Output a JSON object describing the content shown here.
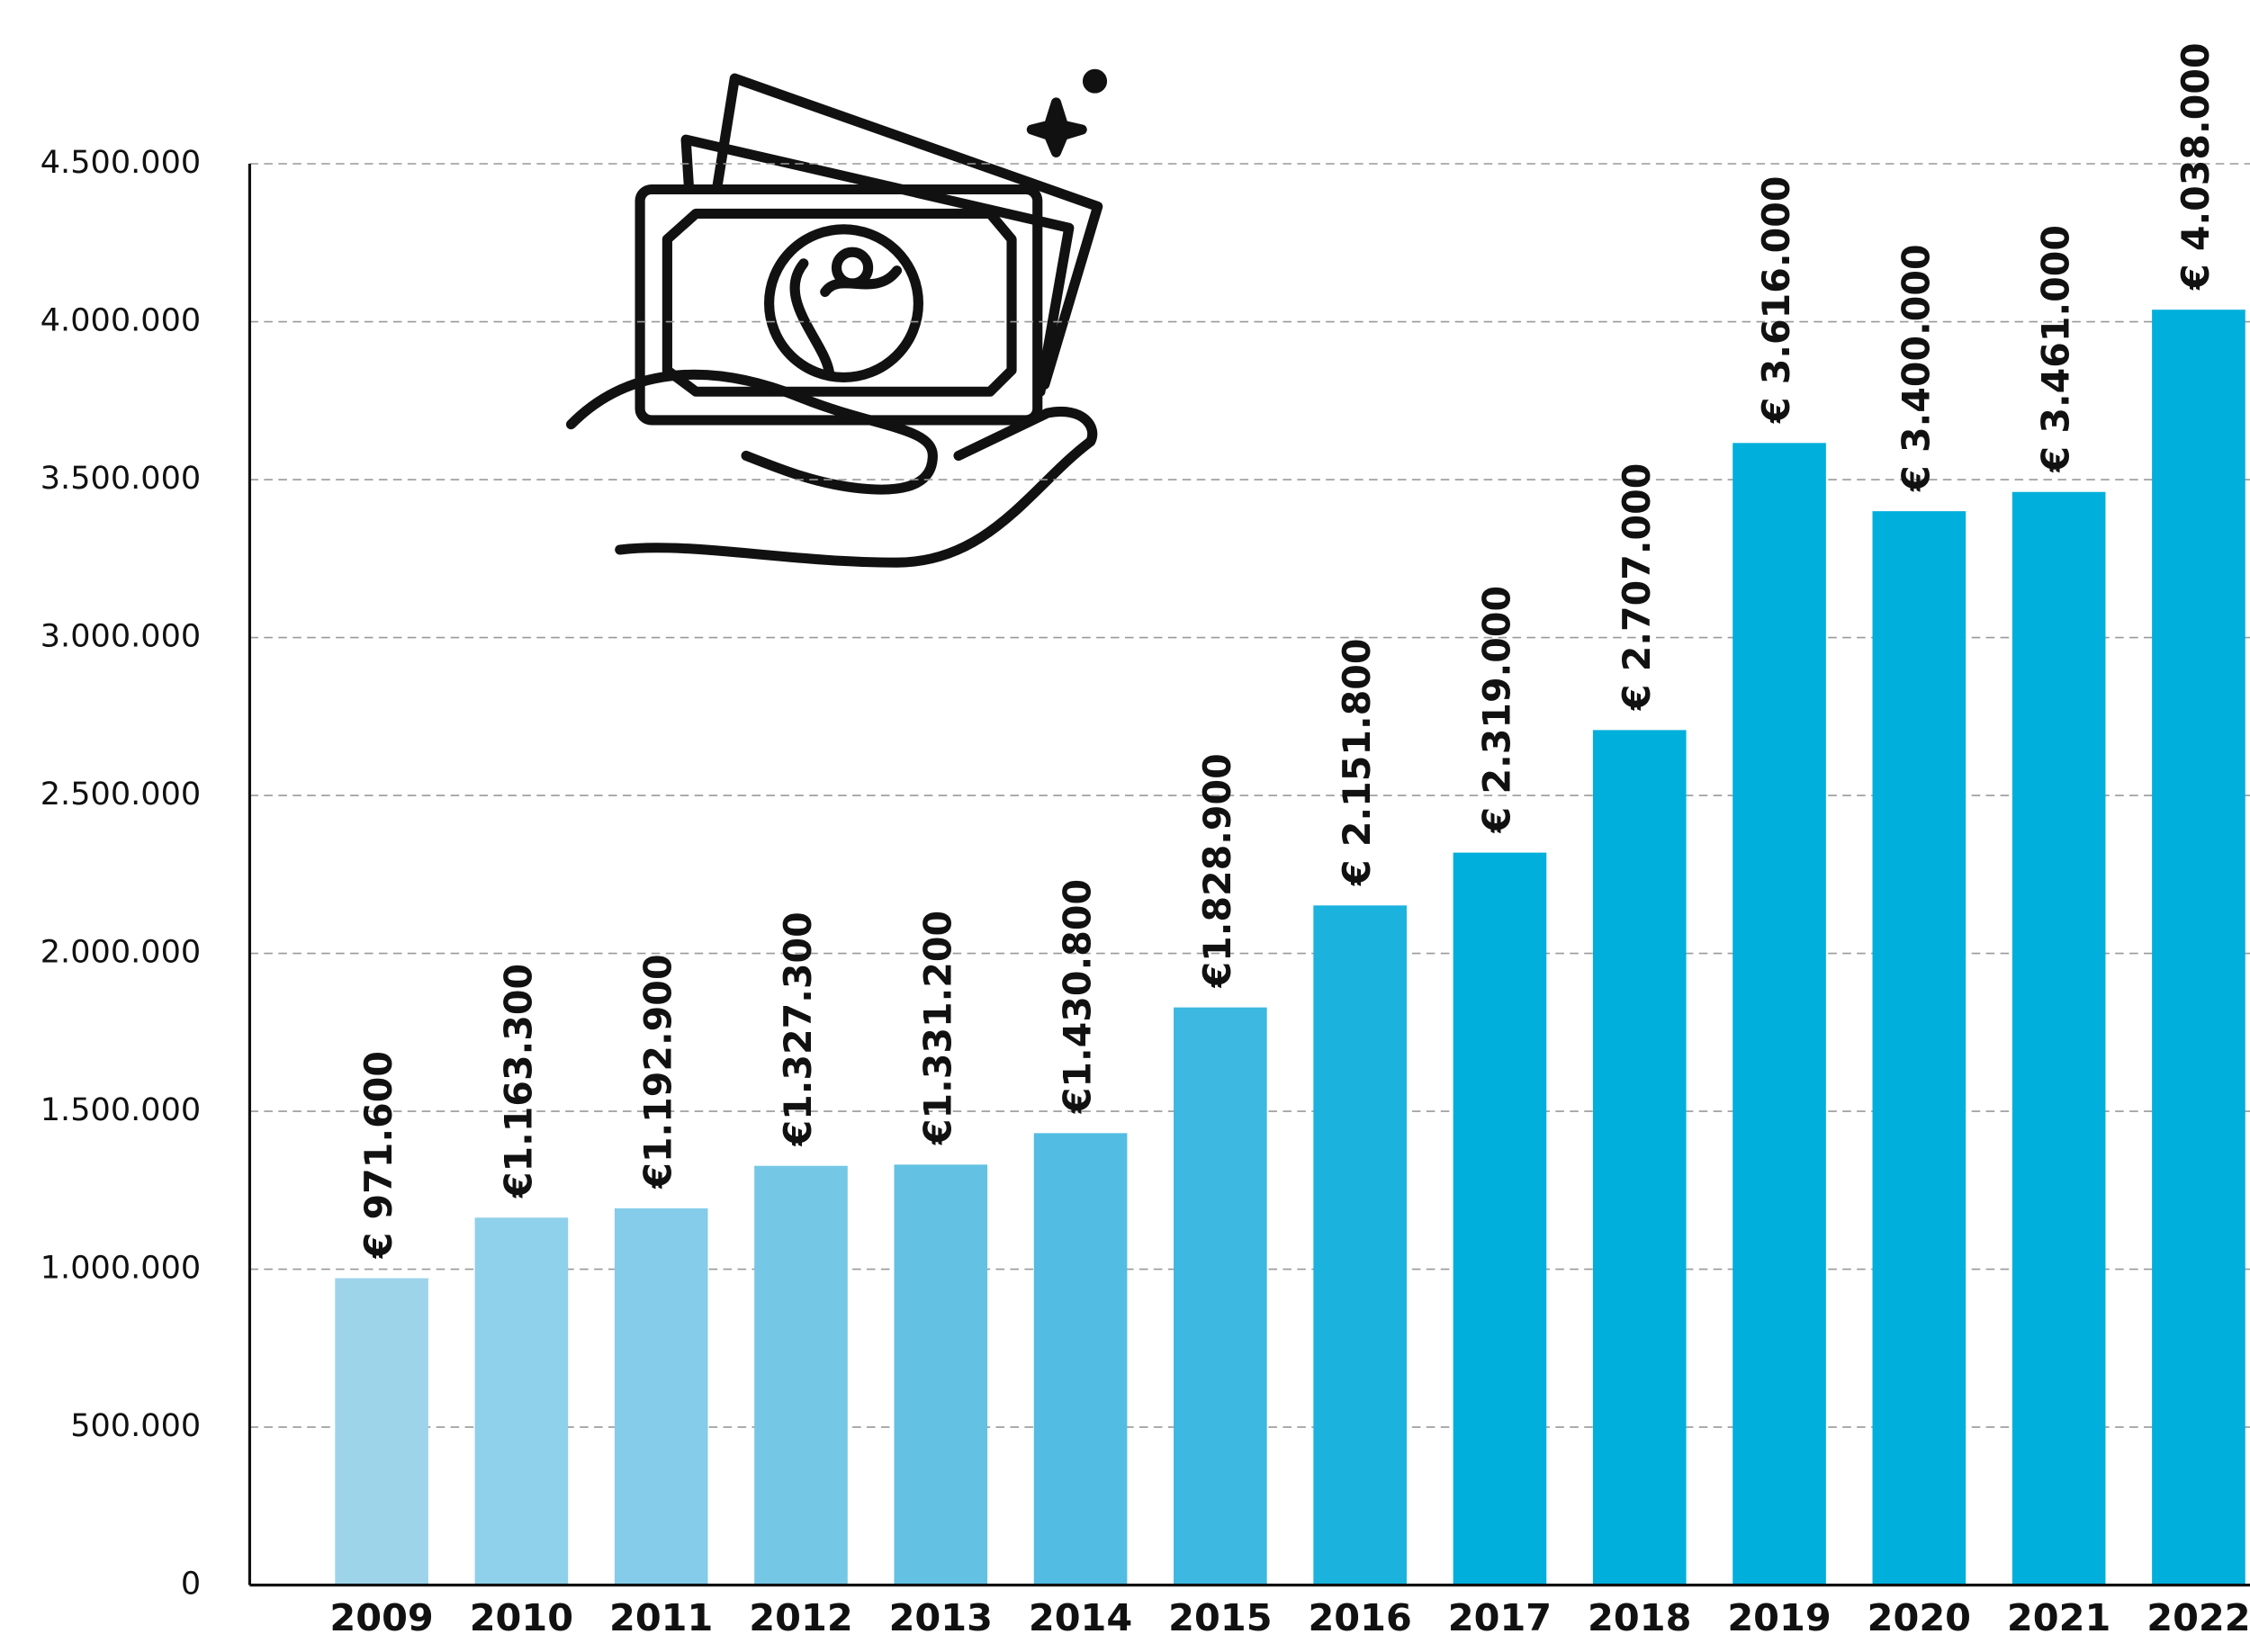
{
  "chart_data": {
    "type": "bar",
    "categories": [
      "2009",
      "2010",
      "2011",
      "2012",
      "2013",
      "2014",
      "2015",
      "2016",
      "2017",
      "2018",
      "2019",
      "2020",
      "2021",
      "2022"
    ],
    "values": [
      971600,
      1163300,
      1192900,
      1327300,
      1331200,
      1430800,
      1828900,
      2151800,
      2319000,
      2707000,
      3616000,
      3400000,
      3461000,
      4038000
    ],
    "value_labels": [
      "€ 971.600",
      "€1.163.300",
      "€1.192.900",
      "€1.327.300",
      "€1.331.200",
      "€1.430.800",
      "€1.828.900",
      "€ 2.151.800",
      "€ 2.319.000",
      "€ 2.707.000",
      "€ 3.616.000",
      "€ 3.400.000",
      "€ 3.461.000",
      "€ 4.038.000"
    ],
    "colors": [
      "#9dd4ea",
      "#8fd0ea",
      "#84cce9",
      "#75c7e6",
      "#63c1e4",
      "#52bce3",
      "#3cb8e1",
      "#1bb3de",
      "#00afdb",
      "#00afdb",
      "#00afdb",
      "#00afdb",
      "#00afdb",
      "#00afdb"
    ],
    "ylim": [
      0,
      4500000
    ],
    "yticks": [
      0,
      {
        "value": 500000,
        "label": "500.000"
      },
      {
        "value": 1000000,
        "label": "1.000.000"
      },
      {
        "value": 1500000,
        "label": "1.500.000"
      },
      {
        "value": 2000000,
        "label": "2.000.000"
      },
      {
        "value": 2500000,
        "label": "2.500.000"
      },
      {
        "value": 3000000,
        "label": "3.000.000"
      },
      {
        "value": 3500000,
        "label": "3.500.000"
      },
      {
        "value": 4000000,
        "label": "4.000.000"
      },
      {
        "value": 4500000,
        "label": "4.500.000"
      }
    ],
    "grid": true
  }
}
